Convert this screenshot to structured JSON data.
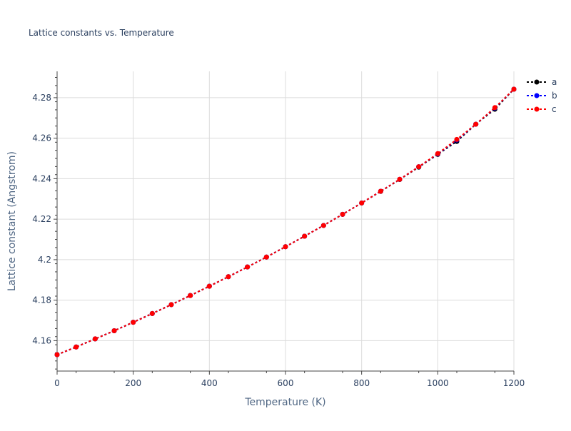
{
  "chart_data": {
    "type": "line",
    "title": "Lattice constants vs. Temperature",
    "xlabel": "Temperature (K)",
    "ylabel": "Lattice constant (Angstrom)",
    "xlim": [
      0,
      1200
    ],
    "ylim": [
      4.145,
      4.293
    ],
    "xticks": [
      0,
      200,
      400,
      600,
      800,
      1000,
      1200
    ],
    "yticks": [
      4.16,
      4.18,
      4.2,
      4.22,
      4.24,
      4.26,
      4.28
    ],
    "ytick_labels": [
      "4.16",
      "4.18",
      "4.2",
      "4.22",
      "4.24",
      "4.26",
      "4.28"
    ],
    "grid": true,
    "legend_position": "top-right",
    "x": [
      0,
      50,
      100,
      150,
      200,
      250,
      300,
      350,
      400,
      450,
      500,
      550,
      600,
      650,
      700,
      750,
      800,
      850,
      900,
      950,
      1000,
      1050,
      1100,
      1150,
      1200
    ],
    "series": [
      {
        "name": "a",
        "color": "#000000",
        "values": [
          4.1531,
          4.1569,
          4.1609,
          4.1649,
          4.1691,
          4.1734,
          4.1778,
          4.1823,
          4.1869,
          4.1916,
          4.1964,
          4.2013,
          4.2064,
          4.2116,
          4.2169,
          4.2224,
          4.228,
          4.2337,
          4.2396,
          4.2457,
          4.252,
          4.2584,
          4.2669,
          4.2743,
          4.2842
        ]
      },
      {
        "name": "b",
        "color": "#0000ff",
        "values": [
          4.1531,
          4.1569,
          4.1609,
          4.1649,
          4.1691,
          4.1734,
          4.1778,
          4.1823,
          4.1869,
          4.1916,
          4.1964,
          4.2013,
          4.2064,
          4.2116,
          4.2169,
          4.2224,
          4.228,
          4.2338,
          4.2397,
          4.2459,
          4.2522,
          4.2591,
          4.2669,
          4.2749,
          4.2842
        ]
      },
      {
        "name": "c",
        "color": "#ff0000",
        "values": [
          4.1531,
          4.1569,
          4.1609,
          4.1649,
          4.1691,
          4.1734,
          4.1778,
          4.1823,
          4.1869,
          4.1916,
          4.1964,
          4.2013,
          4.2064,
          4.2116,
          4.2169,
          4.2224,
          4.228,
          4.2338,
          4.2397,
          4.2459,
          4.2524,
          4.2594,
          4.2669,
          4.2751,
          4.2842
        ]
      }
    ]
  }
}
